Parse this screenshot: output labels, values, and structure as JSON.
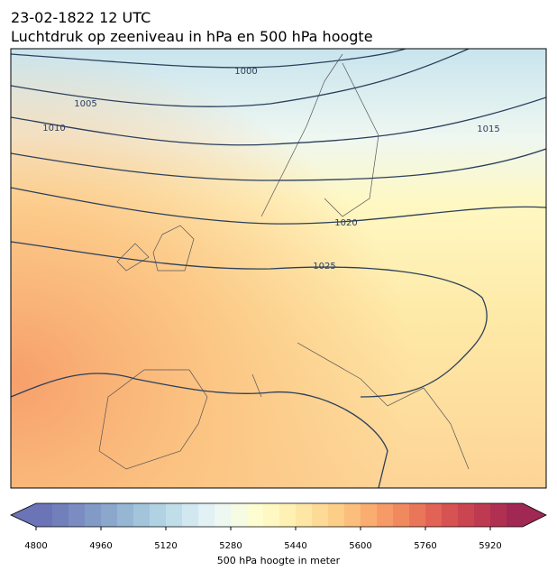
{
  "title": [
    "23-02-1822 12 UTC",
    "Luchtdruk op zeeniveau in hPa en 500 hPa hoogte"
  ],
  "contour_labels": [
    "1000",
    "1005",
    "1010",
    "1015",
    "1020",
    "1025"
  ],
  "colorbar": {
    "label": "500 hPa hoogte in meter",
    "lim": [
      4800,
      6000
    ],
    "ticks": [
      4800,
      4960,
      5120,
      5280,
      5440,
      5600,
      5760,
      5920
    ],
    "colors": [
      "#6a74b6",
      "#717fbb",
      "#7a8cc1",
      "#829ac6",
      "#8ba7cc",
      "#96b6d4",
      "#a2c5dc",
      "#b0d2e3",
      "#c0ddea",
      "#d1e8f0",
      "#e1f1f5",
      "#eef7f1",
      "#f6fbe3",
      "#fdfdd1",
      "#fff8c3",
      "#fff0b4",
      "#fee6a4",
      "#fddb96",
      "#fcce88",
      "#fbbe7c",
      "#f9ad71",
      "#f69b67",
      "#f1895f",
      "#ea7659",
      "#e26355",
      "#d75352",
      "#cb4551",
      "#be3a51",
      "#b03052",
      "#a12853"
    ]
  }
}
